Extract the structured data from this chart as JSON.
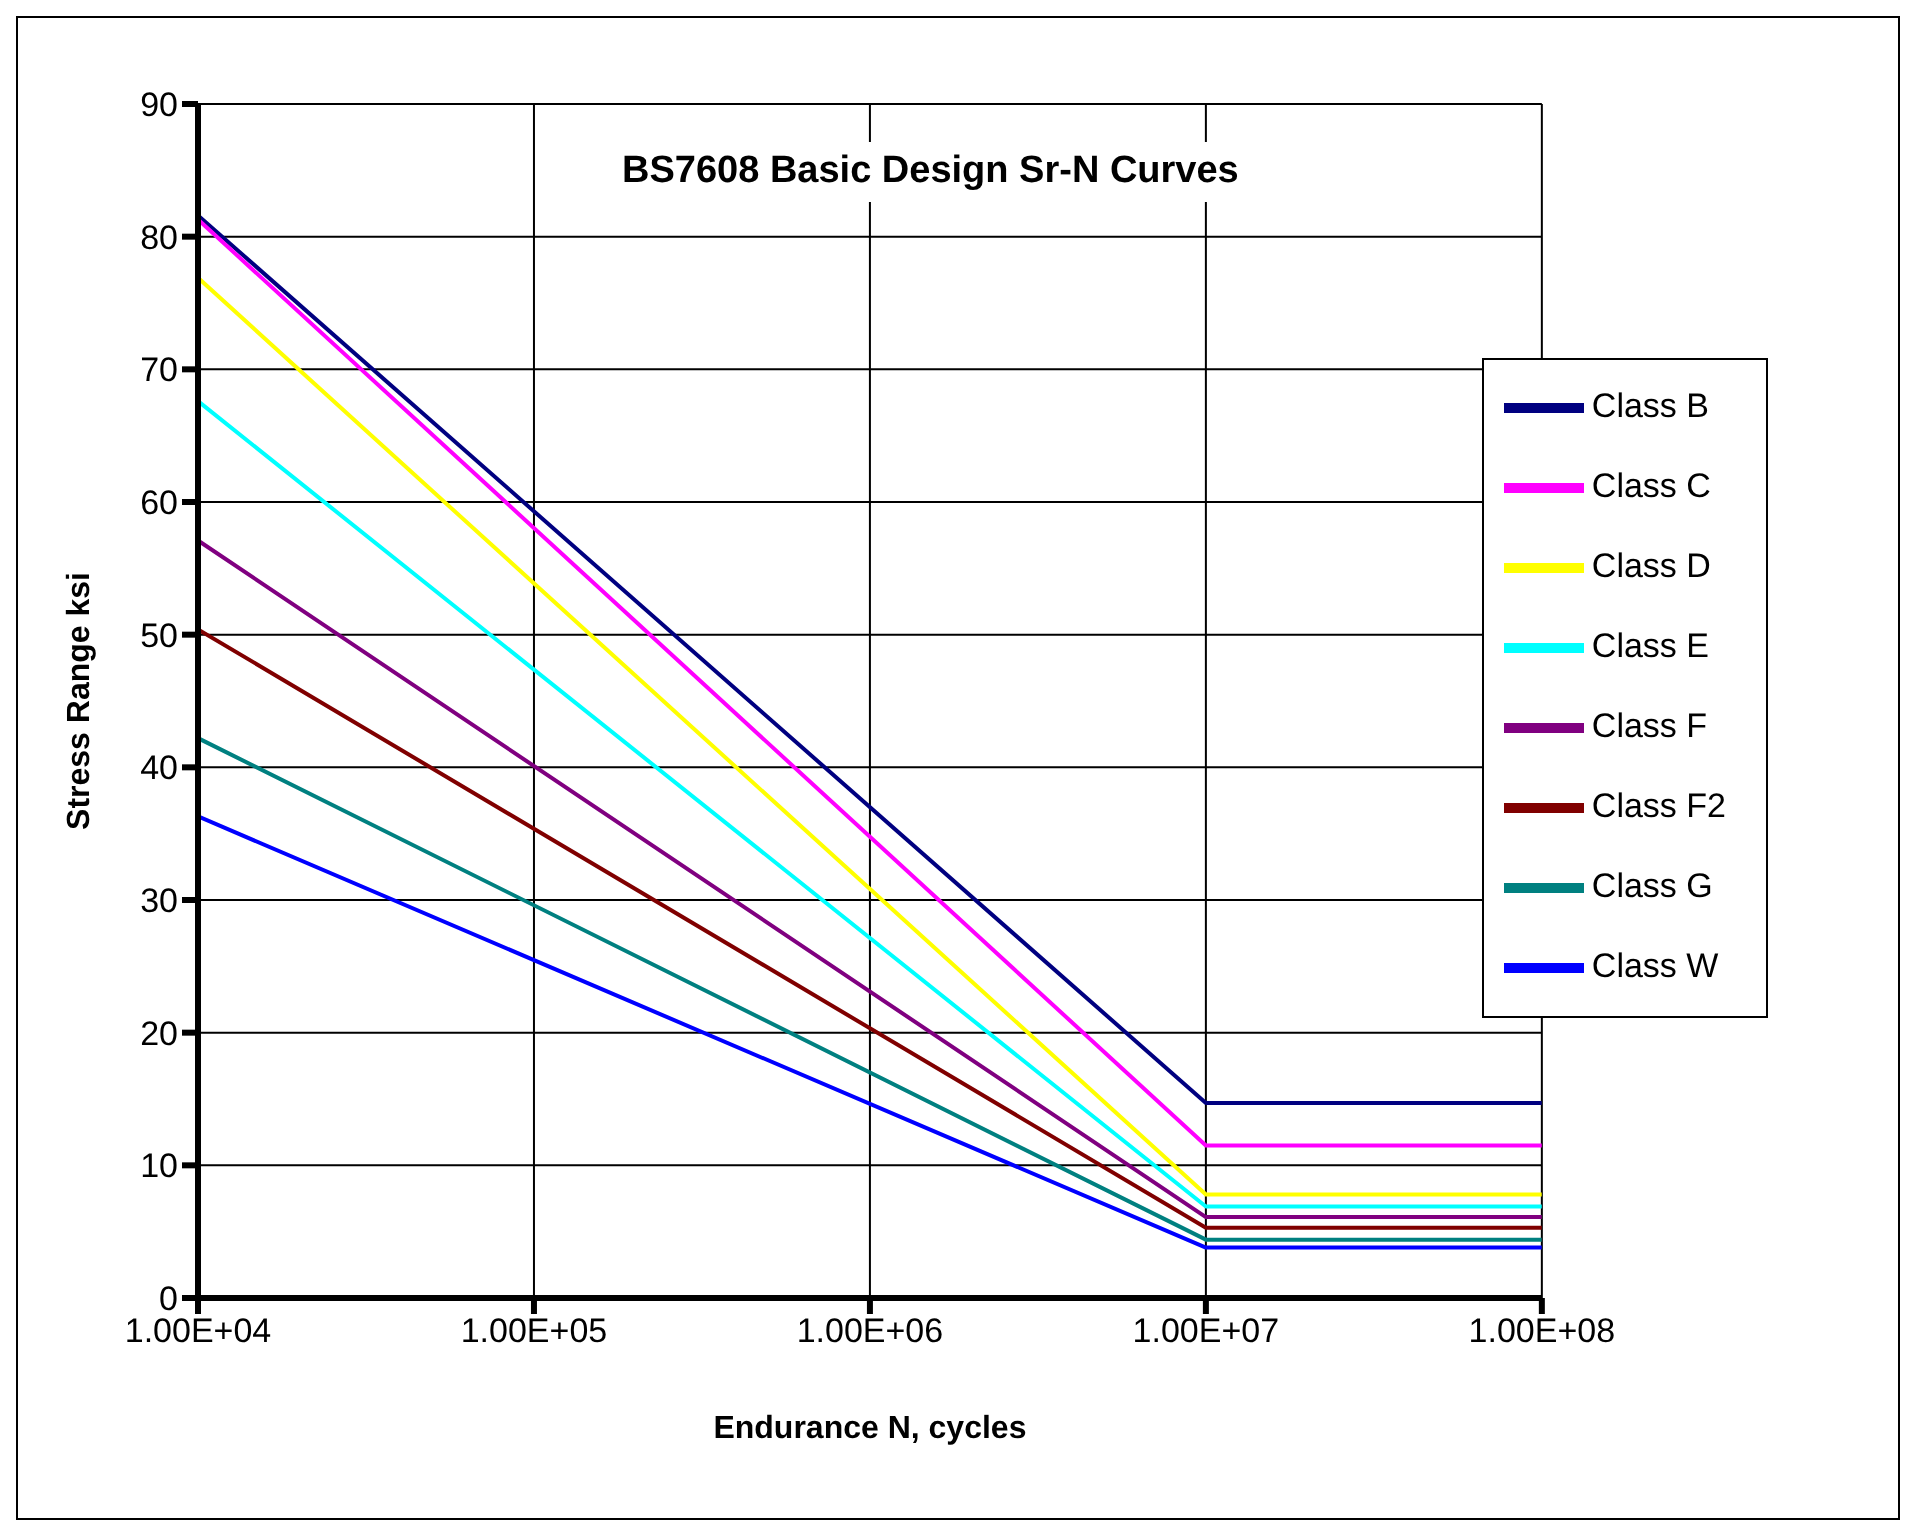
{
  "chart_data": {
    "type": "line",
    "title": "BS7608  Basic Design Sr-N Curves",
    "xlabel": "Endurance N, cycles",
    "ylabel": "Stress Range ksi",
    "log": "x",
    "x": [
      10000,
      10000000,
      100000000
    ],
    "xlim": [
      10000,
      100000000
    ],
    "xticks": [
      {
        "value": 10000,
        "label": "1.00E+04"
      },
      {
        "value": 100000,
        "label": "1.00E+05"
      },
      {
        "value": 1000000,
        "label": "1.00E+06"
      },
      {
        "value": 10000000,
        "label": "1.00E+07"
      },
      {
        "value": 100000000,
        "label": "1.00E+08"
      }
    ],
    "ylim": [
      0,
      90
    ],
    "yticks": [
      0,
      10,
      20,
      30,
      40,
      50,
      60,
      70,
      80,
      90
    ],
    "grid": true,
    "legend": "top right",
    "marker": "none",
    "line_style": "solid",
    "series": [
      {
        "name": "Class B",
        "color": "#000080",
        "values": [
          81.6,
          14.7,
          14.7
        ]
      },
      {
        "name": "Class C",
        "color": "#ff00ff",
        "values": [
          81.3,
          11.5,
          11.5
        ]
      },
      {
        "name": "Class D",
        "color": "#ffff00",
        "values": [
          76.9,
          7.8,
          7.8
        ]
      },
      {
        "name": "Class E",
        "color": "#00ffff",
        "values": [
          67.6,
          6.9,
          6.9
        ]
      },
      {
        "name": "Class F",
        "color": "#800080",
        "values": [
          57.1,
          6.1,
          6.1
        ]
      },
      {
        "name": "Class F2",
        "color": "#800000",
        "values": [
          50.4,
          5.3,
          5.3
        ]
      },
      {
        "name": "Class G",
        "color": "#008080",
        "values": [
          42.2,
          4.4,
          4.4
        ]
      },
      {
        "name": "Class W",
        "color": "#0000ff",
        "values": [
          36.3,
          3.8,
          3.8
        ]
      }
    ]
  }
}
